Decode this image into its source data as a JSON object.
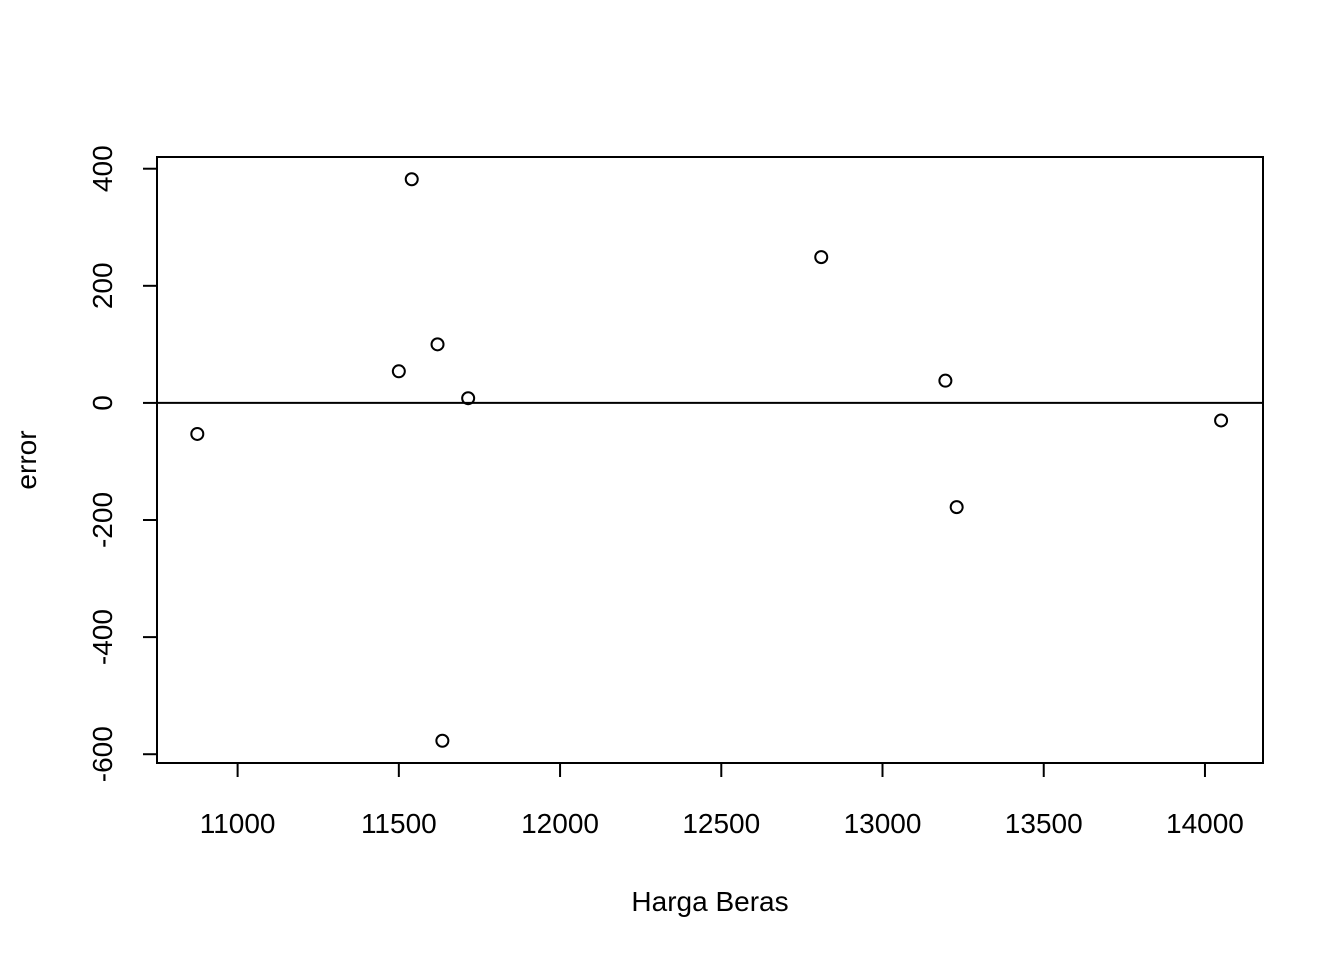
{
  "chart_data": {
    "type": "scatter",
    "title": "",
    "xlabel": "Harga Beras",
    "ylabel": "error",
    "xlim": [
      10750,
      14180
    ],
    "ylim": [
      -615,
      420
    ],
    "x_ticks": [
      11000,
      11500,
      12000,
      12500,
      13000,
      13500,
      14000
    ],
    "x_tick_labels": [
      "11000",
      "11500",
      "12000",
      "12500",
      "13000",
      "13500",
      "14000"
    ],
    "y_ticks": [
      -600,
      -400,
      -200,
      0,
      200,
      400
    ],
    "y_tick_labels": [
      "-600",
      "-400",
      "-200",
      "0",
      "200",
      "400"
    ],
    "reference_line_y": 0,
    "grid": false,
    "legend": "none",
    "marker": "open-circle",
    "colors": {
      "point": "#000000",
      "axis": "#000000",
      "background": "#ffffff"
    },
    "points": [
      {
        "x": 10875,
        "y": -53
      },
      {
        "x": 11500,
        "y": 54
      },
      {
        "x": 11540,
        "y": 382
      },
      {
        "x": 11620,
        "y": 100
      },
      {
        "x": 11635,
        "y": -577
      },
      {
        "x": 11715,
        "y": 8
      },
      {
        "x": 12810,
        "y": 249
      },
      {
        "x": 13195,
        "y": 38
      },
      {
        "x": 13230,
        "y": -178
      },
      {
        "x": 14050,
        "y": -30
      }
    ]
  }
}
